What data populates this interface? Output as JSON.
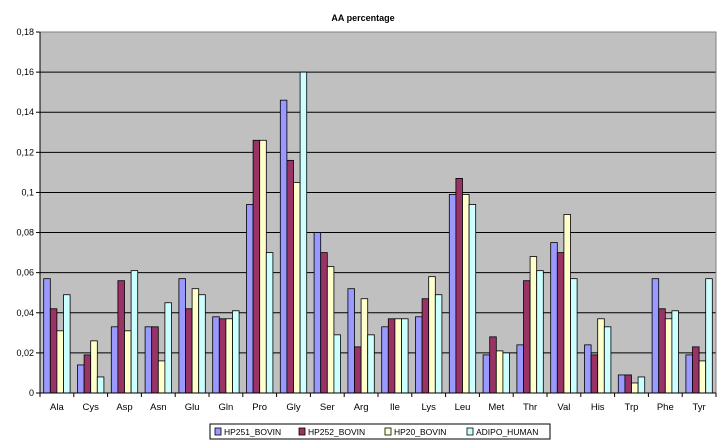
{
  "chart_data": {
    "type": "bar",
    "title": "AA percentage",
    "xlabel": "",
    "ylabel": "",
    "ylim": [
      0,
      0.18
    ],
    "yticks": [
      "0",
      "0,02",
      "0,04",
      "0,06",
      "0,08",
      "0,1",
      "0,12",
      "0,14",
      "0,16",
      "0,18"
    ],
    "grid": true,
    "legend_position": "bottom",
    "plot_background": "#c0c0c0",
    "categories": [
      "Ala",
      "Cys",
      "Asp",
      "Asn",
      "Glu",
      "Gln",
      "Pro",
      "Gly",
      "Ser",
      "Arg",
      "Ile",
      "Lys",
      "Leu",
      "Met",
      "Thr",
      "Val",
      "His",
      "Trp",
      "Phe",
      "Tyr"
    ],
    "series": [
      {
        "name": "HP251_BOVIN",
        "color": "#9999ff",
        "values": [
          0.057,
          0.014,
          0.033,
          0.033,
          0.057,
          0.038,
          0.094,
          0.146,
          0.08,
          0.052,
          0.033,
          0.038,
          0.099,
          0.019,
          0.024,
          0.075,
          0.024,
          0.009,
          0.057,
          0.019
        ]
      },
      {
        "name": "HP252_BOVIN",
        "color": "#993366",
        "values": [
          0.042,
          0.019,
          0.056,
          0.033,
          0.042,
          0.037,
          0.126,
          0.116,
          0.07,
          0.023,
          0.037,
          0.047,
          0.107,
          0.028,
          0.056,
          0.07,
          0.019,
          0.009,
          0.042,
          0.023
        ]
      },
      {
        "name": "HP20_BOVIN",
        "color": "#ffffcc",
        "values": [
          0.031,
          0.026,
          0.031,
          0.016,
          0.052,
          0.037,
          0.126,
          0.105,
          0.063,
          0.047,
          0.037,
          0.058,
          0.099,
          0.021,
          0.068,
          0.089,
          0.037,
          0.005,
          0.037,
          0.016
        ]
      },
      {
        "name": "ADIPO_HUMAN",
        "color": "#ccffff",
        "values": [
          0.049,
          0.008,
          0.061,
          0.045,
          0.049,
          0.041,
          0.07,
          0.16,
          0.029,
          0.029,
          0.037,
          0.049,
          0.094,
          0.02,
          0.061,
          0.057,
          0.033,
          0.008,
          0.041,
          0.057
        ]
      }
    ]
  }
}
